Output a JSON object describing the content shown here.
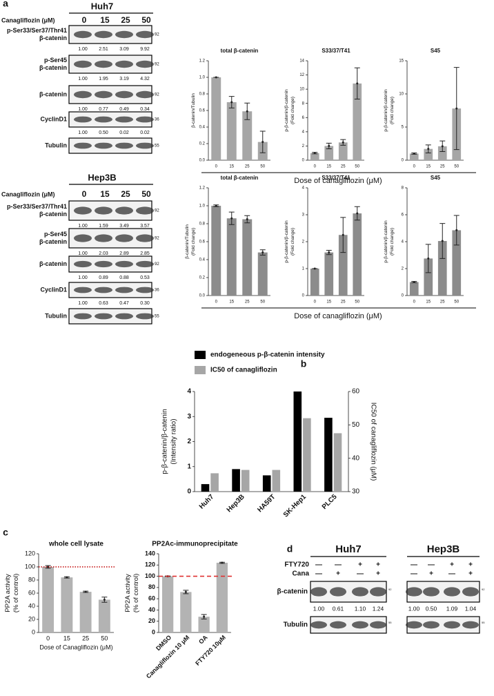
{
  "panel_labels": [
    "a",
    "b",
    "c",
    "d"
  ],
  "blots": [
    {
      "title": "Huh7",
      "dose_label": "Canagliflozin (μM)",
      "doses": [
        "0",
        "15",
        "25",
        "50"
      ],
      "rows": [
        {
          "label": [
            "p-Ser33/Ser37/Thr41",
            "β-catenin"
          ],
          "kda": "92",
          "quant": [
            "1.00",
            "2.51",
            "3.09",
            "9.92"
          ]
        },
        {
          "label": [
            "p-Ser45",
            "β-catenin"
          ],
          "kda": "92",
          "quant": [
            "1.00",
            "1.95",
            "3.19",
            "4.32"
          ]
        },
        {
          "label": [
            "β-catenin"
          ],
          "kda": "92",
          "quant": [
            "1.00",
            "0.77",
            "0.49",
            "0.34"
          ]
        },
        {
          "label": [
            "CyclinD1"
          ],
          "kda": "36",
          "quant": [
            "1.00",
            "0.50",
            "0.02",
            "0.02"
          ]
        },
        {
          "label": [
            "Tubulin"
          ],
          "kda": "55"
        }
      ]
    },
    {
      "title": "Hep3B",
      "dose_label": "Canagliflozin (μM)",
      "doses": [
        "0",
        "15",
        "25",
        "50"
      ],
      "rows": [
        {
          "label": [
            "p-Ser33/Ser37/Thr41",
            "β-catenin"
          ],
          "kda": "92",
          "quant": [
            "1.00",
            "1.59",
            "3.49",
            "3.57"
          ]
        },
        {
          "label": [
            "p-Ser45",
            "β-catenin"
          ],
          "kda": "92",
          "quant": [
            "1.00",
            "2.03",
            "2.89",
            "2.85"
          ]
        },
        {
          "label": [
            "β-catenin"
          ],
          "kda": "92",
          "quant": [
            "1.00",
            "0.89",
            "0.88",
            "0.53"
          ]
        },
        {
          "label": [
            "CyclinD1"
          ],
          "kda": "36",
          "quant": [
            "1.00",
            "0.63",
            "0.47",
            "0.30"
          ]
        },
        {
          "label": [
            "Tubulin"
          ],
          "kda": "55"
        }
      ]
    }
  ],
  "chart_data": [
    {
      "type": "bar",
      "title": "total β-catenin",
      "ylabel": [
        "β-catenin/Tubulin"
      ],
      "categories": [
        "0",
        "15",
        "25",
        "50"
      ],
      "values": [
        1.0,
        0.7,
        0.59,
        0.22
      ],
      "errors": [
        0.0,
        0.07,
        0.1,
        0.13
      ],
      "color": "#a6a6a6",
      "ylim": [
        0,
        1.2
      ],
      "yticks": [
        {
          "value": 0,
          "label": "0.0"
        },
        {
          "value": 0.2,
          "label": "0.2"
        },
        {
          "value": 0.4,
          "label": "0.4"
        },
        {
          "value": 0.6,
          "label": "0.6"
        },
        {
          "value": 0.8,
          "label": "0.8"
        },
        {
          "value": 1.0,
          "label": "1.0"
        },
        {
          "value": 1.2,
          "label": "1.2"
        }
      ]
    },
    {
      "type": "bar",
      "title": "S33/37/T41",
      "ylabel": [
        "p-β-catenin/β-catenin",
        "(Fold change)"
      ],
      "xlabel": "Dose of canagliflozin (μM)",
      "categories": [
        "0",
        "15",
        "25",
        "50"
      ],
      "values": [
        1.0,
        2.0,
        2.5,
        10.8
      ],
      "errors": [
        0.1,
        0.4,
        0.4,
        2.2
      ],
      "color": "#a6a6a6",
      "ylim": [
        0,
        14
      ],
      "yticks": [
        0,
        2,
        4,
        6,
        8,
        10,
        12,
        14
      ]
    },
    {
      "type": "bar",
      "title": "S45",
      "ylabel": [
        "p-β-catenin/β-catenin",
        "(Fold change)"
      ],
      "categories": [
        "0",
        "15",
        "25",
        "50"
      ],
      "values": [
        1.0,
        1.7,
        2.1,
        7.8
      ],
      "errors": [
        0.1,
        0.6,
        0.8,
        6.2
      ],
      "color": "#a6a6a6",
      "ylim": [
        0,
        15
      ],
      "yticks": [
        0,
        5,
        10,
        15
      ]
    },
    {
      "type": "bar",
      "title": "total β-catenin",
      "ylabel": [
        "β-catenin/Tubulin",
        "(Fold change)"
      ],
      "categories": [
        "0",
        "15",
        "25",
        "50"
      ],
      "values": [
        1.0,
        0.86,
        0.85,
        0.48
      ],
      "errors": [
        0.01,
        0.07,
        0.04,
        0.03
      ],
      "color": "#8c8c8c",
      "ylim": [
        0,
        1.2
      ],
      "yticks": [
        {
          "value": 0,
          "label": "0.0"
        },
        {
          "value": 0.2,
          "label": "0.2"
        },
        {
          "value": 0.4,
          "label": "0.4"
        },
        {
          "value": 0.6,
          "label": "0.6"
        },
        {
          "value": 0.8,
          "label": "0.8"
        },
        {
          "value": 1.0,
          "label": "1.0"
        },
        {
          "value": 1.2,
          "label": "1.2"
        }
      ]
    },
    {
      "type": "bar",
      "title": "S33/37/T41",
      "ylabel": [
        "p-β-catenin/β-catenin",
        "(Fold change)"
      ],
      "xlabel": "Dose of canagliflozin (μM)",
      "categories": [
        "0",
        "15",
        "25",
        "50"
      ],
      "values": [
        1.0,
        1.6,
        2.25,
        3.05
      ],
      "errors": [
        0.0,
        0.08,
        0.65,
        0.25
      ],
      "color": "#8c8c8c",
      "ylim": [
        0,
        4
      ],
      "yticks": [
        0,
        1,
        2,
        3,
        4
      ]
    },
    {
      "type": "bar",
      "title": "S45",
      "ylabel": [
        "p-β-catenin/β-catenin",
        "(Fold change)"
      ],
      "categories": [
        "0",
        "15",
        "25",
        "50"
      ],
      "values": [
        1.0,
        2.75,
        4.05,
        4.85
      ],
      "errors": [
        0.05,
        1.05,
        1.3,
        1.1
      ],
      "color": "#8c8c8c",
      "ylim": [
        0,
        8
      ],
      "yticks": [
        0,
        2,
        4,
        6,
        8
      ]
    },
    {
      "type": "grouped_bar",
      "ylabel": [
        "p-β-catenin/β-catenin",
        "(Intensity ratio)"
      ],
      "y2label": "IC50 of canagliflozin (μM)",
      "categories": [
        "Huh7",
        "Hep3B",
        "HA59T",
        "SK-Hep1",
        "PLC5"
      ],
      "series": [
        {
          "name": "endogeneous p-β-catenin intensity",
          "color": "#000000",
          "values": [
            0.3,
            0.9,
            0.65,
            4.0,
            2.95
          ]
        },
        {
          "name": "IC50 of canagliflozin",
          "color": "#a6a6a6",
          "axis": "y2",
          "values": [
            35.5,
            36.5,
            36.5,
            52,
            47.5
          ]
        }
      ],
      "ylim": [
        0,
        4
      ],
      "yticks": [
        0,
        1,
        2,
        3,
        4
      ],
      "y2lim": [
        30,
        60
      ],
      "y2ticks": [
        30,
        40,
        50,
        60
      ]
    },
    {
      "type": "bar",
      "title": "whole cell lysate",
      "ylabel": [
        "PP2A activity",
        "(% of control)"
      ],
      "xlabel": "Dose of Canagliflozin (μM)",
      "categories": [
        "0",
        "15",
        "25",
        "50"
      ],
      "values": [
        100,
        84,
        62,
        50
      ],
      "errors": [
        2,
        1,
        1,
        4
      ],
      "color": "#b3b3b3",
      "ylim": [
        0,
        120
      ],
      "yticks": [
        0,
        20,
        40,
        60,
        80,
        100,
        120
      ],
      "reference_line": {
        "value": 100,
        "color": "#c00000",
        "style": "dotted"
      }
    },
    {
      "type": "bar",
      "title": "PP2Ac-immunoprecipitate",
      "ylabel": [
        "PP2A activity",
        "(% of control)"
      ],
      "categories": [
        "DMSO",
        "Canagliflozin 10 μM",
        "OA",
        "FTY720 10μM"
      ],
      "values": [
        100,
        72,
        28,
        124
      ],
      "errors": [
        0.5,
        3,
        4,
        1
      ],
      "color": "#b3b3b3",
      "ylim": [
        0,
        140
      ],
      "yticks": [
        0,
        20,
        40,
        60,
        80,
        100,
        120,
        140
      ],
      "reference_line": {
        "value": 100,
        "color": "#e03030",
        "style": "dashed"
      }
    }
  ],
  "panel_d": {
    "treatments": [
      {
        "label": "FTY720",
        "signs": [
          "—",
          "—",
          "+",
          "+"
        ]
      },
      {
        "label": "Cana",
        "signs": [
          "—",
          "+",
          "—",
          "+"
        ]
      }
    ],
    "row_labels": [
      "β-catenin",
      "Tubulin"
    ],
    "blots": [
      {
        "title": "Huh7",
        "kda": [
          "92",
          "55"
        ],
        "quant": [
          "1.00",
          "0.61",
          "1.10",
          "1.24"
        ]
      },
      {
        "title": "Hep3B",
        "kda": [
          "92",
          "55"
        ],
        "quant": [
          "1.00",
          "0.50",
          "1.09",
          "1.04"
        ]
      }
    ]
  }
}
